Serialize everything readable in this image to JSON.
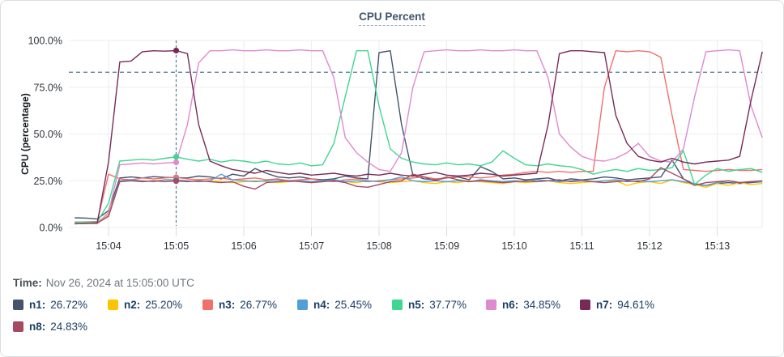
{
  "time_caption": {
    "label": "Time:",
    "value": "Nov 26, 2024 at 15:05:00 UTC"
  },
  "chart_data": {
    "type": "line",
    "title": "CPU Percent",
    "ylabel": "CPU (percentage)",
    "ylim": [
      0,
      100
    ],
    "grid": true,
    "legend_position": "bottom",
    "y_ticks": {
      "values": [
        0,
        25,
        50,
        75,
        100
      ],
      "labels": [
        "0.0%",
        "25.0%",
        "50.0%",
        "75.0%",
        "100.0%"
      ]
    },
    "x_ticks": {
      "seconds_after_1500": [
        240,
        300,
        360,
        420,
        480,
        540,
        600,
        660,
        720,
        780
      ],
      "labels": [
        "15:04",
        "15:05",
        "15:06",
        "15:07",
        "15:08",
        "15:09",
        "15:10",
        "15:11",
        "15:12",
        "15:13"
      ]
    },
    "threshold_line": {
      "value": 83,
      "style": "dashed",
      "color": "#4d7a8c"
    },
    "crosshair": {
      "time_label": "15:05",
      "seconds_after_1500": 300,
      "point_index": 9,
      "color": "#4d7a8c"
    },
    "x_seconds_after_1500": [
      210,
      220,
      230,
      240,
      250,
      260,
      270,
      280,
      290,
      300,
      310,
      320,
      330,
      340,
      350,
      360,
      370,
      380,
      390,
      400,
      410,
      420,
      430,
      440,
      450,
      460,
      470,
      480,
      490,
      500,
      510,
      520,
      530,
      540,
      550,
      560,
      570,
      580,
      590,
      600,
      610,
      620,
      630,
      640,
      650,
      660,
      670,
      680,
      690,
      700,
      710,
      720,
      730,
      740,
      750,
      760,
      770,
      780,
      790,
      800,
      810,
      820
    ],
    "series": [
      {
        "name": "n1",
        "color": "#44546d",
        "value_at_crosshair": "26.72%",
        "values": [
          5.2,
          5.0,
          4.6,
          9,
          26.5,
          27.0,
          26.5,
          27.2,
          26.8,
          26.72,
          26.5,
          27.5,
          27.0,
          26.0,
          28.5,
          27.5,
          31.5,
          29.0,
          27.0,
          26.5,
          27.0,
          26.0,
          25.5,
          26.0,
          27.5,
          26.5,
          26.0,
          93.5,
          94.5,
          55,
          28,
          26,
          25.5,
          26.5,
          27.0,
          25.5,
          32.5,
          30.0,
          26.0,
          26.5,
          25.5,
          26.0,
          26.5,
          25.0,
          26.0,
          25.5,
          26.0,
          27.0,
          26.5,
          25.5,
          26.0,
          26.5,
          27.0,
          36.0,
          26.0,
          23.0,
          22.5,
          23.5,
          24.0,
          23.5,
          24.0,
          24.5
        ]
      },
      {
        "name": "n2",
        "color": "#fdc500",
        "value_at_crosshair": "25.20%",
        "values": [
          2.5,
          2.5,
          2.8,
          7,
          24.5,
          25.0,
          24.5,
          25.0,
          25.5,
          25.2,
          24.8,
          24.5,
          25.0,
          24.5,
          24.0,
          24.5,
          25.0,
          24.5,
          24.0,
          24.5,
          25.0,
          24.0,
          24.5,
          25.5,
          24.5,
          24.0,
          25.0,
          24.5,
          24.0,
          24.5,
          25.0,
          24.0,
          23.5,
          24.5,
          24.0,
          25.0,
          24.5,
          24.0,
          23.5,
          24.5,
          24.0,
          24.5,
          25.0,
          24.0,
          23.5,
          24.0,
          24.5,
          24.0,
          25.0,
          22.5,
          24.0,
          24.5,
          23.5,
          25.5,
          24.0,
          23.0,
          21.5,
          23.5,
          22.5,
          24.0,
          23.0,
          23.5
        ]
      },
      {
        "name": "n3",
        "color": "#f0706b",
        "value_at_crosshair": "26.77%",
        "values": [
          2.8,
          3.0,
          3.2,
          28.5,
          26.0,
          25.5,
          26.5,
          26.0,
          26.5,
          26.77,
          26.0,
          25.5,
          26.0,
          26.5,
          25.5,
          26.0,
          26.5,
          25.5,
          26.0,
          25.0,
          25.5,
          26.0,
          25.0,
          24.5,
          25.5,
          26.0,
          25.0,
          24.5,
          25.5,
          26.0,
          26.5,
          27.0,
          26.0,
          26.5,
          27.5,
          27.0,
          26.5,
          27.0,
          28.0,
          28.5,
          29.5,
          30.0,
          29.5,
          30.0,
          29.5,
          30.0,
          30.0,
          75,
          94.5,
          94.0,
          94.5,
          94.0,
          91.0,
          60,
          31.0,
          30.5,
          30.0,
          30.5,
          31.0,
          30.5,
          30.5,
          31.0
        ]
      },
      {
        "name": "n4",
        "color": "#519fd4",
        "value_at_crosshair": "25.45%",
        "values": [
          2.2,
          2.3,
          2.5,
          6,
          25.0,
          25.5,
          25.0,
          24.5,
          25.5,
          25.45,
          25.0,
          24.5,
          25.0,
          28.5,
          25.5,
          25.0,
          24.5,
          25.0,
          25.5,
          24.5,
          25.0,
          24.5,
          25.0,
          25.5,
          24.5,
          25.0,
          24.5,
          25.0,
          25.5,
          27.0,
          25.0,
          24.5,
          25.0,
          24.5,
          25.0,
          24.5,
          25.5,
          25.0,
          24.5,
          25.0,
          24.5,
          25.5,
          25.0,
          24.5,
          25.0,
          25.5,
          24.5,
          25.0,
          25.5,
          24.5,
          25.0,
          24.5,
          25.0,
          25.5,
          24.5,
          23.5,
          22.5,
          24.0,
          25.0,
          24.0,
          24.5,
          24.5
        ]
      },
      {
        "name": "n5",
        "color": "#3fd690",
        "value_at_crosshair": "37.77%",
        "values": [
          3.0,
          2.8,
          3.0,
          13,
          35.5,
          36.0,
          36.5,
          36.0,
          37.0,
          37.77,
          36.5,
          35.5,
          36.5,
          35.0,
          36.0,
          35.5,
          34.5,
          35.5,
          34.0,
          33.5,
          34.5,
          33.0,
          33.5,
          45,
          70,
          94.5,
          94.5,
          65,
          42,
          37,
          35,
          34,
          33.5,
          34.5,
          33.5,
          34,
          33,
          35,
          41,
          37,
          33.5,
          33,
          34,
          33,
          32.5,
          31,
          28.5,
          30,
          31,
          30,
          31.5,
          30.5,
          31,
          32,
          41,
          23,
          28,
          31.5,
          30,
          31,
          31.5,
          29.5
        ]
      },
      {
        "name": "n6",
        "color": "#de8ad1",
        "value_at_crosshair": "34.85%",
        "values": [
          2.0,
          2.2,
          2.0,
          8,
          33.5,
          34,
          34.5,
          34,
          34.5,
          34.85,
          55,
          88,
          94.5,
          94.5,
          95,
          94.5,
          94.5,
          95,
          94.5,
          94.5,
          95,
          94.5,
          94.5,
          80,
          48,
          40,
          35,
          31,
          30,
          40,
          75,
          94,
          94.5,
          95,
          94.5,
          94.5,
          95,
          94.5,
          94.5,
          95,
          94.5,
          94.5,
          80,
          50,
          43,
          38,
          36,
          35.5,
          37,
          40,
          45,
          38,
          35.5,
          35,
          42,
          70,
          94,
          94.5,
          95,
          94.5,
          65,
          48
        ]
      },
      {
        "name": "n7",
        "color": "#772a58",
        "value_at_crosshair": "94.61%",
        "values": [
          2.0,
          2.2,
          2.5,
          35,
          88.5,
          89,
          94,
          94.5,
          94.3,
          94.61,
          93,
          55,
          35.5,
          33,
          31,
          30,
          29,
          30.5,
          29.5,
          28.5,
          29,
          28,
          28.5,
          29,
          28,
          27.5,
          28.5,
          28,
          29,
          28,
          27.5,
          28.5,
          29.5,
          28,
          27.5,
          28,
          29,
          28.5,
          27.5,
          28,
          28.5,
          29,
          55,
          93,
          94.5,
          94.5,
          94,
          93.5,
          60,
          45,
          38,
          36,
          35,
          37,
          35,
          34,
          35,
          35.5,
          36,
          38,
          68,
          94
        ]
      },
      {
        "name": "n8",
        "color": "#a54a62",
        "value_at_crosshair": "24.83%",
        "values": [
          2.0,
          2.1,
          2.3,
          6,
          24.5,
          25.0,
          24.5,
          25.0,
          24.5,
          24.83,
          24.5,
          25.0,
          24.5,
          24.0,
          24.5,
          22.0,
          20.5,
          24.0,
          24.5,
          25.0,
          24.5,
          24.0,
          24.5,
          25.0,
          24.0,
          22.0,
          21.5,
          23.0,
          24.5,
          25.0,
          28.5,
          27.0,
          25.0,
          27.0,
          25.5,
          24.5,
          25.0,
          24.5,
          24.0,
          24.5,
          25.0,
          24.5,
          25.0,
          25.5,
          24.5,
          25.0,
          24.5,
          24.0,
          24.5,
          25.0,
          24.5,
          26.0,
          32.0,
          29.0,
          26.0,
          22.5,
          24.0,
          24.5,
          25.0,
          24.0,
          24.5,
          25.0
        ]
      }
    ]
  }
}
